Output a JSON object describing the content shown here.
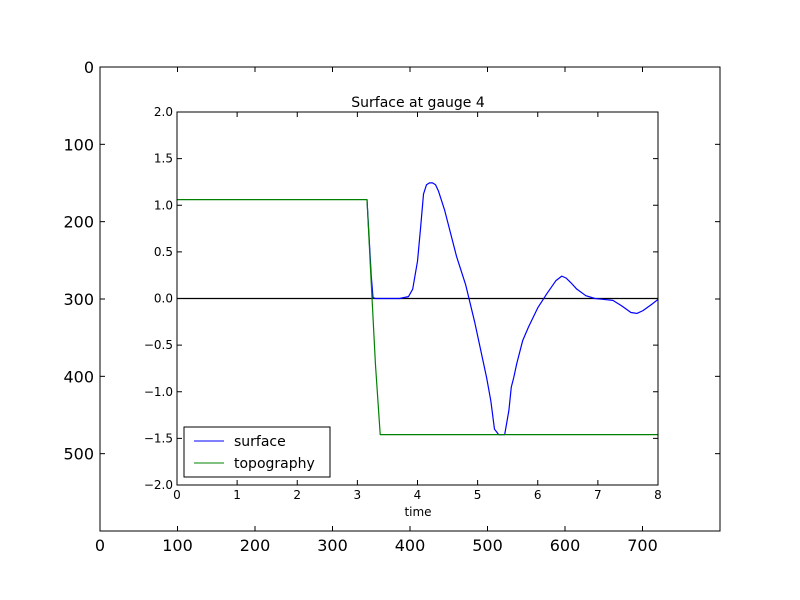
{
  "chart_data": [
    {
      "type": "image-axes",
      "xlim": [
        0,
        800
      ],
      "ylim": [
        600,
        0
      ],
      "xticks": [
        0,
        100,
        200,
        300,
        400,
        500,
        600,
        700
      ],
      "xtick_labels": [
        "0",
        "100",
        "200",
        "300",
        "400",
        "500",
        "600",
        "700"
      ],
      "yticks": [
        0,
        100,
        200,
        300,
        400,
        500
      ],
      "ytick_labels": [
        "0",
        "100",
        "200",
        "300",
        "400",
        "500"
      ]
    },
    {
      "type": "line",
      "title": "Surface at gauge 4",
      "xlabel": "time",
      "ylabel": "",
      "xlim": [
        0,
        8
      ],
      "ylim": [
        -2.0,
        2.0
      ],
      "xticks": [
        0,
        1,
        2,
        3,
        4,
        5,
        6,
        7,
        8
      ],
      "xtick_labels": [
        "0",
        "1",
        "2",
        "3",
        "4",
        "5",
        "6",
        "7",
        "8"
      ],
      "yticks": [
        2.0,
        1.5,
        1.0,
        0.5,
        0.0,
        -0.5,
        -1.0,
        -1.5,
        -2.0
      ],
      "ytick_labels": [
        "2.0",
        "1.5",
        "1.0",
        "0.5",
        "0.0",
        "−0.5",
        "−1.0",
        "−1.5",
        "−2.0"
      ],
      "reference_line": {
        "y": 0.0,
        "color": "#000000"
      },
      "legend": {
        "location": "lower left"
      },
      "series": [
        {
          "name": "surface",
          "color": "#0000ff",
          "x": [
            0,
            3.13,
            3.16,
            3.2,
            3.23,
            3.26,
            3.3,
            3.5,
            3.7,
            3.85,
            3.92,
            4.0,
            4.05,
            4.1,
            4.15,
            4.2,
            4.25,
            4.3,
            4.35,
            4.45,
            4.55,
            4.65,
            4.8,
            4.95,
            5.05,
            5.15,
            5.22,
            5.28,
            5.35,
            5.45,
            5.52,
            5.56,
            5.6,
            5.65,
            5.75,
            5.85,
            6.0,
            6.15,
            6.3,
            6.4,
            6.47,
            6.55,
            6.65,
            6.8,
            6.95,
            7.1,
            7.25,
            7.4,
            7.55,
            7.65,
            7.75,
            7.9,
            8.0
          ],
          "y": [
            null,
            null,
            1.06,
            0.6,
            0.25,
            0.01,
            0.0,
            0.0,
            0.0,
            0.02,
            0.1,
            0.4,
            0.75,
            1.12,
            1.22,
            1.24,
            1.24,
            1.22,
            1.15,
            0.95,
            0.7,
            0.45,
            0.15,
            -0.25,
            -0.55,
            -0.85,
            -1.1,
            -1.4,
            -1.46,
            -1.46,
            -1.2,
            -0.95,
            -0.85,
            -0.7,
            -0.45,
            -0.3,
            -0.1,
            0.05,
            0.19,
            0.24,
            0.22,
            0.17,
            0.1,
            0.03,
            0.0,
            -0.01,
            -0.02,
            -0.08,
            -0.15,
            -0.16,
            -0.13,
            -0.06,
            -0.01
          ]
        },
        {
          "name": "topography",
          "color": "#008000",
          "x": [
            0,
            3.16,
            3.22,
            3.3,
            3.38,
            8.0
          ],
          "y": [
            1.06,
            1.06,
            0.3,
            -0.7,
            -1.46,
            -1.46
          ]
        }
      ]
    }
  ]
}
